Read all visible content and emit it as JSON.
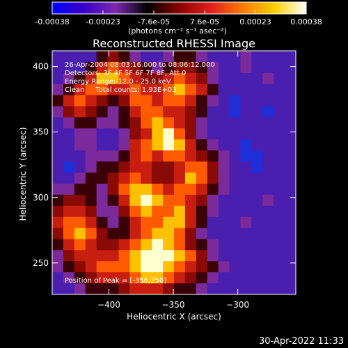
{
  "colorbar": {
    "tick_labels": [
      "-0.00038",
      "-0.00023",
      "-7.6e-05",
      "7.6e-05",
      "0.00023",
      "0.00038"
    ],
    "units_label": "(photons cm⁻² s⁻¹ asec⁻²)",
    "colors": [
      "#0000ff",
      "#3a00c8",
      "#7a2ab0",
      "#000000",
      "#8b0000",
      "#e0201a",
      "#ff7a00",
      "#ffd000",
      "#ffffff"
    ]
  },
  "annotations": {
    "time_range": "26-Apr-2004 08:03:16.000 to 08:06:12.000",
    "detectors": "Detectors: 3F 4F 5F 6F 7F 8F, Att 0",
    "energy_range": "Energy Range: 12.0 - 25.0 keV",
    "clean_counts": "Clean     Total counts: 1.93E+03",
    "peak_position": "Position of Peak = [-356,250]"
  },
  "footer": {
    "date": "30-Apr-2022 11:33"
  },
  "chart_data": {
    "type": "heatmap",
    "title": "Reconstructed RHESSI Image",
    "xlabel": "Heliocentric X (arcsec)",
    "ylabel": "Heliocentric Y (arcsec)",
    "x_ticks": [
      -400,
      -350,
      -300
    ],
    "y_ticks": [
      250,
      300,
      350,
      400
    ],
    "xlim": [
      -444,
      -255
    ],
    "ylim": [
      226,
      412
    ],
    "zlim": [
      -0.00038,
      0.00038
    ],
    "peak": [
      -356,
      250
    ],
    "grid_cols": 22,
    "grid_rows": 22,
    "values": [
      [
        1,
        1,
        1,
        1,
        3,
        4,
        3,
        2,
        1,
        1,
        2,
        3,
        3,
        2,
        1,
        1,
        1,
        2,
        1,
        1,
        1,
        1
      ],
      [
        1,
        1,
        1,
        3,
        5,
        6,
        5,
        4,
        3,
        2,
        3,
        4,
        4,
        3,
        2,
        1,
        1,
        2,
        1,
        1,
        1,
        1
      ],
      [
        1,
        2,
        3,
        5,
        7,
        7,
        6,
        5,
        4,
        4,
        5,
        6,
        5,
        4,
        2,
        1,
        1,
        1,
        1,
        2,
        1,
        1
      ],
      [
        2,
        3,
        5,
        6,
        6,
        5,
        5,
        6,
        5,
        5,
        6,
        7,
        6,
        5,
        3,
        1,
        1,
        1,
        1,
        1,
        1,
        1
      ],
      [
        3,
        5,
        6,
        5,
        4,
        3,
        4,
        6,
        6,
        5,
        6,
        6,
        5,
        3,
        2,
        1,
        0,
        1,
        1,
        1,
        1,
        1
      ],
      [
        2,
        4,
        5,
        4,
        3,
        2,
        3,
        5,
        6,
        6,
        5,
        5,
        4,
        3,
        1,
        1,
        0,
        1,
        1,
        0,
        1,
        1
      ],
      [
        1,
        2,
        3,
        3,
        2,
        2,
        3,
        4,
        6,
        7,
        6,
        5,
        4,
        2,
        1,
        1,
        1,
        1,
        1,
        1,
        1,
        1
      ],
      [
        1,
        1,
        2,
        2,
        1,
        1,
        2,
        4,
        5,
        7,
        8,
        6,
        4,
        2,
        1,
        1,
        1,
        1,
        1,
        1,
        1,
        1
      ],
      [
        1,
        1,
        2,
        2,
        1,
        1,
        2,
        5,
        6,
        7,
        8,
        7,
        5,
        3,
        2,
        1,
        1,
        0,
        1,
        1,
        1,
        1
      ],
      [
        1,
        1,
        1,
        2,
        2,
        2,
        3,
        5,
        6,
        5,
        6,
        6,
        5,
        4,
        3,
        2,
        1,
        0,
        0,
        1,
        1,
        1
      ],
      [
        1,
        0,
        1,
        2,
        3,
        3,
        4,
        5,
        5,
        4,
        4,
        5,
        6,
        6,
        4,
        2,
        1,
        1,
        0,
        1,
        1,
        1
      ],
      [
        1,
        1,
        2,
        3,
        3,
        4,
        5,
        6,
        5,
        4,
        4,
        5,
        7,
        6,
        4,
        2,
        1,
        1,
        1,
        1,
        1,
        1
      ],
      [
        2,
        2,
        3,
        3,
        2,
        4,
        6,
        7,
        7,
        6,
        5,
        6,
        6,
        5,
        3,
        2,
        1,
        1,
        1,
        1,
        1,
        1
      ],
      [
        3,
        4,
        4,
        3,
        2,
        3,
        5,
        7,
        8,
        7,
        6,
        6,
        5,
        4,
        2,
        1,
        1,
        1,
        1,
        2,
        1,
        1
      ],
      [
        4,
        5,
        5,
        4,
        2,
        2,
        4,
        6,
        7,
        6,
        6,
        7,
        5,
        3,
        2,
        1,
        1,
        1,
        1,
        1,
        1,
        1
      ],
      [
        5,
        6,
        6,
        5,
        3,
        2,
        3,
        5,
        6,
        6,
        7,
        7,
        5,
        3,
        1,
        1,
        1,
        2,
        1,
        1,
        1,
        1
      ],
      [
        4,
        6,
        7,
        6,
        4,
        3,
        3,
        5,
        6,
        7,
        7,
        6,
        4,
        2,
        1,
        1,
        1,
        1,
        1,
        1,
        1,
        1
      ],
      [
        3,
        5,
        6,
        5,
        4,
        4,
        5,
        6,
        7,
        8,
        7,
        6,
        4,
        3,
        2,
        1,
        1,
        1,
        1,
        1,
        1,
        1
      ],
      [
        2,
        4,
        5,
        5,
        5,
        5,
        6,
        7,
        8,
        8,
        8,
        7,
        6,
        4,
        2,
        1,
        1,
        1,
        1,
        1,
        1,
        1
      ],
      [
        2,
        3,
        4,
        5,
        6,
        6,
        6,
        7,
        8,
        8,
        7,
        6,
        5,
        4,
        3,
        2,
        1,
        1,
        1,
        1,
        1,
        1
      ],
      [
        1,
        2,
        3,
        4,
        5,
        5,
        5,
        6,
        7,
        7,
        6,
        5,
        4,
        3,
        2,
        1,
        1,
        1,
        1,
        1,
        1,
        1
      ],
      [
        1,
        1,
        2,
        3,
        3,
        3,
        4,
        5,
        5,
        5,
        4,
        3,
        3,
        2,
        1,
        1,
        1,
        1,
        1,
        1,
        1,
        1
      ]
    ]
  }
}
